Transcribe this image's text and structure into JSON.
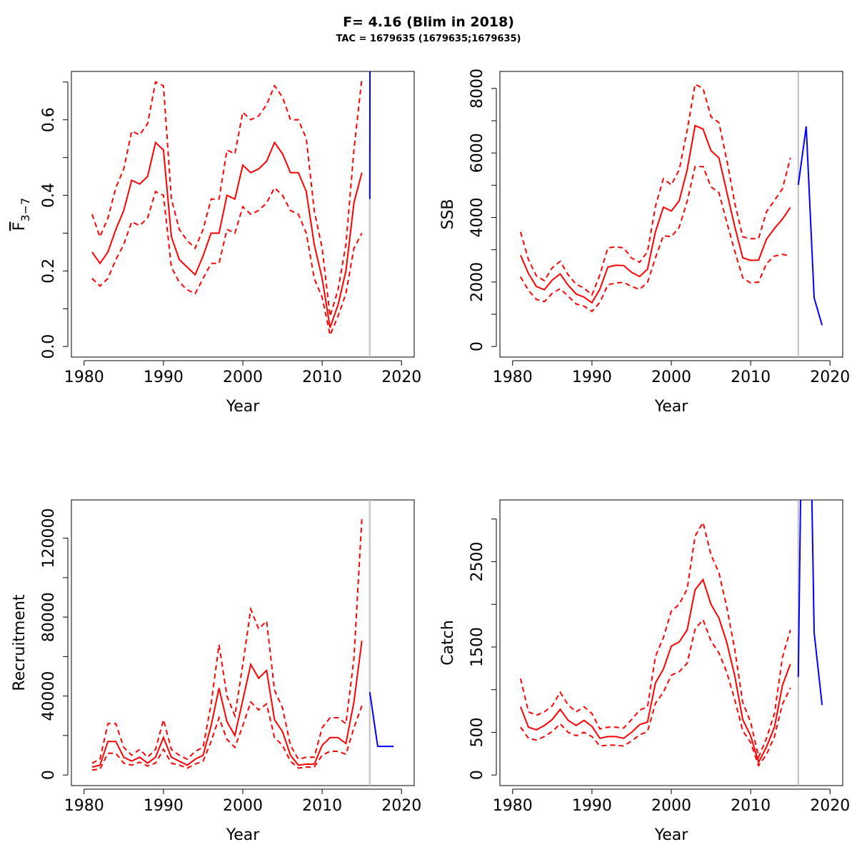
{
  "title": "F= 4.16 (Blim in 2018)",
  "subtitle": "TAC = 1679635 (1679635;1679635)",
  "colors": {
    "hist": "#ff0000",
    "proj": "#0000ff",
    "divider": "#bebebe",
    "axis": "#000000"
  },
  "chart_data": [
    {
      "type": "line",
      "id": "fbar",
      "xlabel": "Year",
      "ylabel_main": "F",
      "ylabel_sub": "3−7",
      "xlim": [
        1980,
        2020
      ],
      "ylim": [
        0,
        0.7
      ],
      "xticks": [
        1980,
        1990,
        2000,
        2010,
        2020
      ],
      "yticks": [
        0.0,
        0.2,
        0.4,
        0.6
      ],
      "ytick_labels": [
        "0.0",
        "0.2",
        "0.4",
        "0.6"
      ],
      "minor_yticks": [
        0.1,
        0.3,
        0.5,
        0.7
      ],
      "divider_x": 2016,
      "x": [
        1981,
        1982,
        1983,
        1984,
        1985,
        1986,
        1987,
        1988,
        1989,
        1990,
        1991,
        1992,
        1993,
        1994,
        1995,
        1996,
        1997,
        1998,
        1999,
        2000,
        2001,
        2002,
        2003,
        2004,
        2005,
        2006,
        2007,
        2008,
        2009,
        2010,
        2011,
        2012,
        2013,
        2014,
        2015
      ],
      "series": [
        {
          "role": "median",
          "values": [
            0.25,
            0.22,
            0.25,
            0.31,
            0.36,
            0.44,
            0.43,
            0.45,
            0.54,
            0.52,
            0.29,
            0.23,
            0.21,
            0.19,
            0.24,
            0.3,
            0.3,
            0.4,
            0.39,
            0.48,
            0.46,
            0.47,
            0.49,
            0.54,
            0.51,
            0.46,
            0.46,
            0.41,
            0.27,
            0.18,
            0.05,
            0.11,
            0.2,
            0.38,
            0.46
          ]
        },
        {
          "role": "upper",
          "values": [
            0.35,
            0.29,
            0.34,
            0.42,
            0.47,
            0.57,
            0.56,
            0.59,
            0.7,
            0.69,
            0.39,
            0.31,
            0.28,
            0.26,
            0.31,
            0.39,
            0.39,
            0.52,
            0.51,
            0.62,
            0.6,
            0.61,
            0.64,
            0.69,
            0.66,
            0.6,
            0.6,
            0.55,
            0.36,
            0.26,
            0.08,
            0.15,
            0.27,
            0.52,
            0.71
          ]
        },
        {
          "role": "lower",
          "values": [
            0.18,
            0.16,
            0.18,
            0.23,
            0.27,
            0.33,
            0.32,
            0.34,
            0.41,
            0.4,
            0.21,
            0.17,
            0.15,
            0.14,
            0.18,
            0.22,
            0.22,
            0.31,
            0.3,
            0.37,
            0.35,
            0.36,
            0.38,
            0.42,
            0.4,
            0.36,
            0.35,
            0.3,
            0.18,
            0.13,
            0.03,
            0.08,
            0.14,
            0.26,
            0.3
          ]
        }
      ],
      "projection": {
        "x": [
          2016,
          2016.03
        ],
        "values": [
          0.39,
          0.76
        ]
      }
    },
    {
      "type": "line",
      "id": "ssb",
      "xlabel": "Year",
      "ylabel_main": "SSB",
      "xlim": [
        1980,
        2020
      ],
      "ylim": [
        0,
        8200
      ],
      "xticks": [
        1980,
        1990,
        2000,
        2010,
        2020
      ],
      "yticks": [
        0,
        2000,
        4000,
        6000,
        8000
      ],
      "ytick_labels": [
        "0",
        "2000",
        "4000",
        "6000",
        "8000"
      ],
      "minor_yticks": [
        1000,
        3000,
        5000,
        7000
      ],
      "divider_x": 2016,
      "x": [
        1981,
        1982,
        1983,
        1984,
        1985,
        1986,
        1987,
        1988,
        1989,
        1990,
        1991,
        1992,
        1993,
        1994,
        1995,
        1996,
        1997,
        1998,
        1999,
        2000,
        2001,
        2002,
        2003,
        2004,
        2005,
        2006,
        2007,
        2008,
        2009,
        2010,
        2011,
        2012,
        2013,
        2014,
        2015
      ],
      "series": [
        {
          "role": "median",
          "values": [
            2830,
            2260,
            1860,
            1760,
            2060,
            2250,
            1900,
            1630,
            1530,
            1360,
            1780,
            2460,
            2520,
            2510,
            2300,
            2170,
            2400,
            3560,
            4320,
            4200,
            4520,
            5480,
            6850,
            6740,
            6070,
            5850,
            4780,
            3710,
            2750,
            2670,
            2680,
            3330,
            3660,
            3950,
            4310
          ]
        },
        {
          "role": "upper",
          "values": [
            3550,
            2690,
            2190,
            2040,
            2440,
            2640,
            2220,
            1930,
            1810,
            1600,
            2220,
            3060,
            3090,
            3060,
            2740,
            2610,
            2940,
            4350,
            5200,
            5010,
            5480,
            6700,
            8130,
            8000,
            7120,
            6940,
            5770,
            4450,
            3400,
            3340,
            3350,
            4180,
            4530,
            4890,
            5850
          ]
        },
        {
          "role": "lower",
          "values": [
            2160,
            1740,
            1460,
            1390,
            1650,
            1790,
            1560,
            1320,
            1250,
            1090,
            1370,
            1910,
            1970,
            1990,
            1860,
            1770,
            1990,
            2750,
            3440,
            3400,
            3700,
            4500,
            5580,
            5580,
            4950,
            4770,
            3840,
            2950,
            2130,
            1970,
            2000,
            2570,
            2800,
            2860,
            2800
          ]
        }
      ],
      "projection": {
        "x": [
          2016,
          2017,
          2018,
          2019
        ],
        "values": [
          5010,
          6820,
          1510,
          660
        ]
      }
    },
    {
      "type": "line",
      "id": "recruitment",
      "xlabel": "Year",
      "ylabel_main": "Recruitment",
      "xlim": [
        1980,
        2020
      ],
      "ylim": [
        0,
        134000
      ],
      "xticks": [
        1980,
        1990,
        2000,
        2010,
        2020
      ],
      "yticks": [
        0,
        40000,
        80000,
        120000
      ],
      "ytick_labels": [
        "0",
        "40000",
        "80000",
        "120000"
      ],
      "minor_yticks": [
        20000,
        60000,
        100000
      ],
      "divider_x": 2016,
      "x": [
        1981,
        1982,
        1983,
        1984,
        1985,
        1986,
        1987,
        1988,
        1989,
        1990,
        1991,
        1992,
        1993,
        1994,
        1995,
        1996,
        1997,
        1998,
        1999,
        2000,
        2001,
        2002,
        2003,
        2004,
        2005,
        2006,
        2007,
        2008,
        2009,
        2010,
        2011,
        2012,
        2013,
        2014,
        2015
      ],
      "series": [
        {
          "role": "median",
          "values": [
            4000,
            5000,
            17000,
            17000,
            9000,
            7000,
            9000,
            6000,
            9000,
            19000,
            9000,
            7000,
            5000,
            8000,
            10000,
            25000,
            44000,
            27000,
            20000,
            38000,
            56000,
            49000,
            53000,
            28000,
            22000,
            10000,
            5000,
            5500,
            5500,
            15000,
            19000,
            19000,
            16000,
            37000,
            68000
          ]
        },
        {
          "role": "upper",
          "values": [
            6000,
            8000,
            26000,
            26000,
            14000,
            10000,
            13000,
            9000,
            13000,
            28000,
            13000,
            10000,
            8000,
            12000,
            14000,
            36000,
            66000,
            40000,
            30000,
            56000,
            84000,
            74000,
            78000,
            43000,
            34000,
            15000,
            8000,
            9000,
            9000,
            24000,
            29000,
            29000,
            26000,
            59000,
            130000
          ]
        },
        {
          "role": "lower",
          "values": [
            2500,
            3000,
            11000,
            11000,
            6000,
            5000,
            6500,
            4500,
            6000,
            13000,
            6000,
            5000,
            3500,
            5500,
            7000,
            17000,
            29000,
            18000,
            14000,
            25000,
            37000,
            33000,
            36000,
            19000,
            15000,
            7000,
            3500,
            4000,
            4000,
            10000,
            12000,
            12000,
            10500,
            24000,
            35000
          ]
        }
      ],
      "projection": {
        "x": [
          2016,
          2017,
          2018,
          2019
        ],
        "values": [
          42000,
          14500,
          14500,
          14500
        ]
      }
    },
    {
      "type": "line",
      "id": "catch",
      "xlabel": "Year",
      "ylabel_main": "Catch",
      "xlim": [
        1980,
        2020
      ],
      "ylim": [
        0,
        3100
      ],
      "xticks": [
        1980,
        1990,
        2000,
        2010,
        2020
      ],
      "yticks": [
        0,
        500,
        1500,
        2500
      ],
      "ytick_labels": [
        "0",
        "500",
        "1500",
        "2500"
      ],
      "minor_yticks": [
        1000,
        2000,
        3000
      ],
      "divider_x": 2016,
      "x": [
        1981,
        1982,
        1983,
        1984,
        1985,
        1986,
        1987,
        1988,
        1989,
        1990,
        1991,
        1992,
        1993,
        1994,
        1995,
        1996,
        1997,
        1998,
        1999,
        2000,
        2001,
        2002,
        2003,
        2004,
        2005,
        2006,
        2007,
        2008,
        2009,
        2010,
        2011,
        2012,
        2013,
        2014,
        2015
      ],
      "series": [
        {
          "role": "median",
          "values": [
            800,
            560,
            530,
            580,
            650,
            770,
            640,
            580,
            640,
            570,
            430,
            450,
            450,
            430,
            500,
            590,
            620,
            1080,
            1240,
            1510,
            1560,
            1700,
            2170,
            2290,
            2000,
            1840,
            1550,
            1160,
            650,
            460,
            150,
            330,
            560,
            1050,
            1300
          ]
        },
        {
          "role": "upper",
          "values": [
            1130,
            740,
            700,
            740,
            810,
            970,
            820,
            740,
            800,
            720,
            540,
            560,
            560,
            550,
            650,
            760,
            800,
            1390,
            1610,
            1920,
            2000,
            2180,
            2800,
            2960,
            2580,
            2370,
            1960,
            1470,
            850,
            620,
            210,
            430,
            720,
            1380,
            1700
          ]
        },
        {
          "role": "lower",
          "values": [
            560,
            430,
            410,
            450,
            510,
            600,
            500,
            460,
            500,
            450,
            340,
            350,
            350,
            340,
            400,
            470,
            510,
            840,
            970,
            1170,
            1210,
            1310,
            1710,
            1820,
            1570,
            1430,
            1200,
            880,
            520,
            380,
            110,
            240,
            450,
            830,
            1020
          ]
        }
      ],
      "projection": {
        "x": [
          2016,
          2016.3,
          2017.7,
          2018,
          2019
        ],
        "values": [
          1150,
          3300,
          3300,
          1670,
          820
        ]
      }
    }
  ]
}
